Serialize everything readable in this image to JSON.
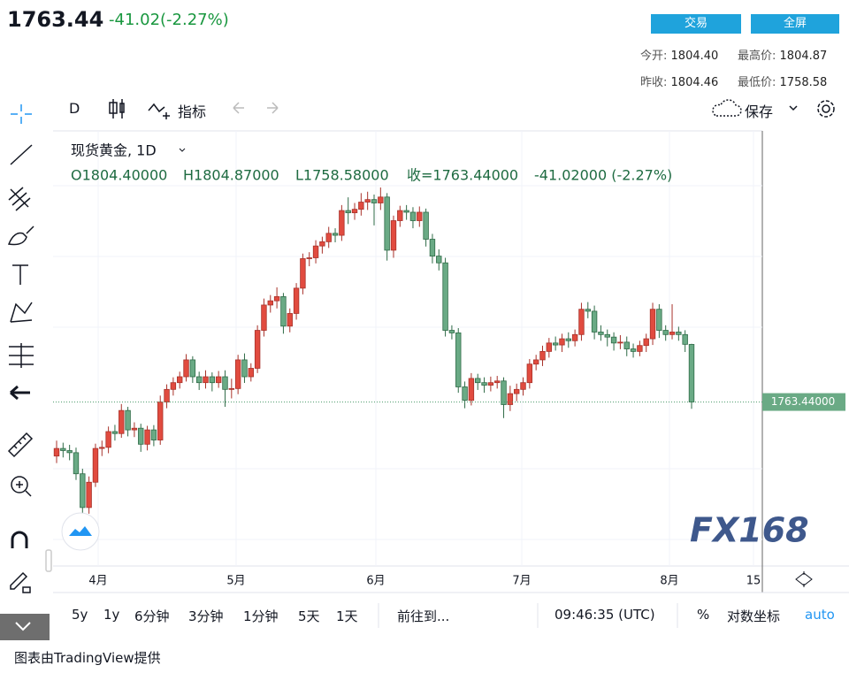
{
  "header": {
    "price": "1763.44",
    "change": "-41.02(-2.27%)",
    "buttons": [
      "交易",
      "全屏"
    ],
    "stats": [
      {
        "label": "今开:",
        "value": "1804.40"
      },
      {
        "label": "最高价:",
        "value": "1804.87"
      },
      {
        "label": "昨收:",
        "value": "1804.46"
      },
      {
        "label": "最低价:",
        "value": "1758.58"
      }
    ]
  },
  "toolbar": {
    "interval": "D",
    "indicators": "指标",
    "save": "保存"
  },
  "chart_data": {
    "type": "candlestick",
    "title": "现货黄金, 1D",
    "legend": {
      "open": "O1804.40000",
      "high": "H1804.87000",
      "low": "L1758.58000",
      "close": "收=1763.44000",
      "change": "-41.02000 (-2.27%)"
    },
    "x_labels": [
      "4月",
      "5月",
      "6月",
      "7月",
      "8月",
      "15"
    ],
    "last_price_label": "1763.44000",
    "up_color": "#e14b3f",
    "down_color": "#6aaa85",
    "watermark": "FX168",
    "open": [
      1725.0,
      1730.4,
      1728.9,
      1727.4,
      1712.4,
      1688.4,
      1706.4,
      1730.4,
      1731.2,
      1742.4,
      1741.0,
      1757.4,
      1743.6,
      1744.8,
      1733.4,
      1743.6,
      1736.4,
      1763.4,
      1772.4,
      1777.2,
      1781.4,
      1793.4,
      1781.4,
      1777.2,
      1781.4,
      1777.2,
      1781.4,
      1772.4,
      1773.0,
      1793.4,
      1781.4,
      1787.4,
      1814.4,
      1832.4,
      1835.4,
      1838.4,
      1817.4,
      1826.4,
      1844.4,
      1865.4,
      1866.0,
      1874.4,
      1877.4,
      1883.4,
      1882.0,
      1899.6,
      1898.0,
      1900.5,
      1905.6,
      1907.4,
      1905.0,
      1909.2,
      1871.4,
      1892.4,
      1899.6,
      1898.4,
      1892.4,
      1898.4,
      1879.2,
      1867.2,
      1862.4,
      1814.4,
      1812.6,
      1774.2,
      1764.6,
      1780.2,
      1777.2,
      1775.4,
      1777.2,
      1778.4,
      1761.6,
      1769.4,
      1772.4,
      1777.2,
      1790.4,
      1793.4,
      1799.4,
      1805.4,
      1804.0,
      1808.4,
      1807.0,
      1811.4,
      1829.4,
      1828.0,
      1813.2,
      1811.4,
      1809.6,
      1805.4,
      1806.0,
      1801.2,
      1799.4,
      1803.6,
      1808.4,
      1829.4,
      1814.4,
      1811.4,
      1813.2,
      1811.4,
      1804.4
    ],
    "high": [
      1736.0,
      1734.5,
      1733.0,
      1731.0,
      1716.0,
      1710.5,
      1733.8,
      1736.0,
      1746.0,
      1747.2,
      1762.0,
      1760.0,
      1749.0,
      1748.0,
      1746.5,
      1747.0,
      1768.0,
      1776.0,
      1781.0,
      1785.0,
      1797.5,
      1796.0,
      1785.0,
      1786.0,
      1784.5,
      1785.5,
      1786.0,
      1780.0,
      1797.0,
      1798.0,
      1791.0,
      1818.0,
      1837.0,
      1839.5,
      1845.0,
      1841.0,
      1830.0,
      1848.0,
      1869.0,
      1870.0,
      1878.5,
      1881.0,
      1888.0,
      1887.0,
      1903.5,
      1909.0,
      1905.0,
      1912.0,
      1913.0,
      1911.0,
      1916.0,
      1912.0,
      1896.0,
      1903.0,
      1903.5,
      1902.0,
      1902.5,
      1901.0,
      1883.0,
      1872.0,
      1866.0,
      1818.0,
      1816.0,
      1778.0,
      1784.0,
      1783.5,
      1781.0,
      1781.5,
      1782.0,
      1781.0,
      1775.0,
      1776.5,
      1781.0,
      1794.0,
      1797.0,
      1803.5,
      1809.0,
      1810.0,
      1812.0,
      1813.0,
      1815.0,
      1834.0,
      1834.5,
      1832.0,
      1818.0,
      1815.0,
      1813.0,
      1811.0,
      1810.0,
      1805.0,
      1807.0,
      1812.0,
      1834.0,
      1833.0,
      1818.0,
      1833.0,
      1817.0,
      1814.5,
      1804.87
    ],
    "low": [
      1720.0,
      1724.0,
      1722.0,
      1708.0,
      1677.0,
      1684.0,
      1703.0,
      1725.0,
      1727.0,
      1736.0,
      1738.0,
      1739.0,
      1738.5,
      1728.0,
      1729.0,
      1732.0,
      1733.0,
      1759.0,
      1768.0,
      1773.0,
      1778.0,
      1777.0,
      1772.0,
      1773.0,
      1771.0,
      1773.5,
      1760.0,
      1766.0,
      1769.0,
      1777.0,
      1778.0,
      1784.0,
      1810.0,
      1827.0,
      1830.0,
      1812.0,
      1813.0,
      1822.0,
      1840.0,
      1860.0,
      1862.0,
      1869.0,
      1873.0,
      1877.0,
      1878.0,
      1890.0,
      1893.0,
      1896.0,
      1900.0,
      1889.0,
      1900.0,
      1864.0,
      1866.0,
      1888.0,
      1893.0,
      1887.0,
      1888.0,
      1874.0,
      1862.0,
      1857.0,
      1810.0,
      1808.0,
      1770.0,
      1759.0,
      1761.0,
      1772.0,
      1770.0,
      1771.0,
      1773.0,
      1752.0,
      1757.0,
      1764.0,
      1768.0,
      1773.0,
      1786.0,
      1789.0,
      1795.0,
      1800.0,
      1799.0,
      1802.0,
      1803.0,
      1807.0,
      1823.0,
      1808.0,
      1807.0,
      1803.0,
      1800.0,
      1801.0,
      1796.0,
      1795.0,
      1796.0,
      1799.0,
      1804.0,
      1809.0,
      1807.0,
      1808.0,
      1807.0,
      1799.0,
      1758.58
    ],
    "close": [
      1730.4,
      1728.9,
      1727.4,
      1712.4,
      1688.4,
      1706.4,
      1730.4,
      1731.2,
      1742.4,
      1741.0,
      1757.4,
      1743.6,
      1744.8,
      1733.4,
      1743.6,
      1736.4,
      1763.4,
      1772.4,
      1777.2,
      1781.4,
      1793.4,
      1781.4,
      1777.2,
      1781.4,
      1777.2,
      1781.4,
      1772.4,
      1773.0,
      1793.4,
      1781.4,
      1787.4,
      1814.4,
      1832.4,
      1835.4,
      1838.4,
      1817.4,
      1826.4,
      1844.4,
      1865.4,
      1866.0,
      1874.4,
      1877.4,
      1883.4,
      1882.0,
      1899.6,
      1898.0,
      1900.5,
      1905.6,
      1907.4,
      1905.0,
      1909.2,
      1871.4,
      1892.4,
      1899.6,
      1898.4,
      1892.4,
      1898.4,
      1879.2,
      1867.2,
      1862.4,
      1814.4,
      1812.6,
      1774.2,
      1764.6,
      1780.2,
      1777.2,
      1775.4,
      1777.2,
      1778.4,
      1761.6,
      1769.4,
      1772.4,
      1777.2,
      1790.4,
      1793.4,
      1799.4,
      1805.4,
      1804.0,
      1808.4,
      1807.0,
      1811.4,
      1829.4,
      1828.0,
      1813.2,
      1811.4,
      1809.6,
      1805.4,
      1806.0,
      1801.2,
      1799.4,
      1803.6,
      1808.4,
      1829.4,
      1814.4,
      1811.4,
      1813.2,
      1811.4,
      1804.46,
      1763.44
    ]
  },
  "bottom_bar": {
    "ranges": [
      "5y",
      "1y",
      "6分钟",
      "3分钟",
      "1分钟",
      "5天",
      "1天"
    ],
    "goto": "前往到...",
    "time": "09:46:35 (UTC)",
    "percent": "%",
    "log": "对数坐标",
    "auto": "auto"
  },
  "footer": "图表由TradingView提供"
}
